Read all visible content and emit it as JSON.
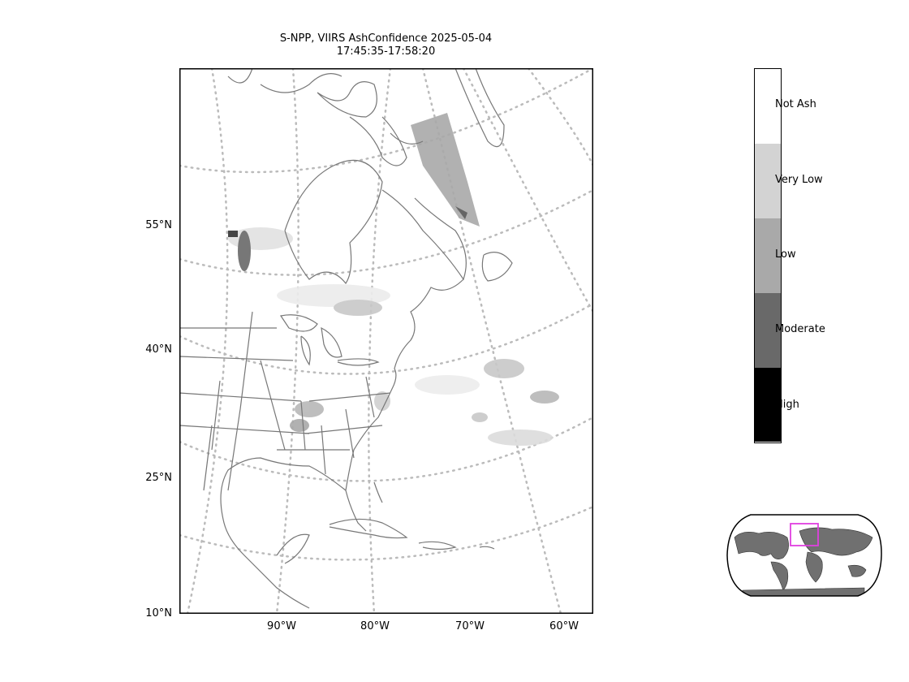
{
  "title": {
    "line1": "S-NPP, VIIRS AshConfidence 2025-05-04",
    "line2": "17:45:35-17:58:20"
  },
  "axes": {
    "lat_labels": [
      "55°N",
      "40°N",
      "25°N",
      "10°N"
    ],
    "lon_labels": [
      "90°W",
      "80°W",
      "70°W",
      "60°W"
    ]
  },
  "colorbar": {
    "categories": [
      {
        "label": "Not Ash",
        "color": "#ffffff"
      },
      {
        "label": "Very Low",
        "color": "#d3d3d3"
      },
      {
        "label": "Low",
        "color": "#a9a9a9"
      },
      {
        "label": "Moderate",
        "color": "#696969"
      },
      {
        "label": "High",
        "color": "#000000"
      }
    ]
  },
  "colors": {
    "coastline": "#777777",
    "graticule": "#bbbbbb",
    "inset_highlight": "#e040e0",
    "inset_land": "#707070"
  }
}
